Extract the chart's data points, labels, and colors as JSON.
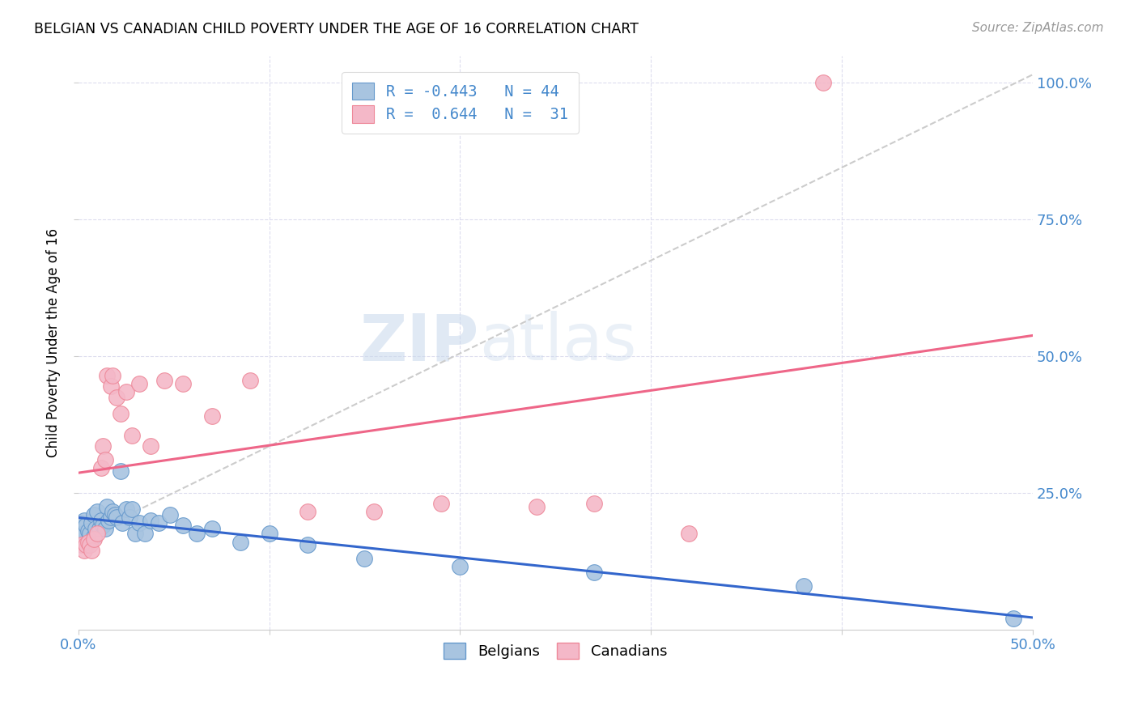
{
  "title": "BELGIAN VS CANADIAN CHILD POVERTY UNDER THE AGE OF 16 CORRELATION CHART",
  "source": "Source: ZipAtlas.com",
  "ylabel": "Child Poverty Under the Age of 16",
  "xlim": [
    0.0,
    0.5
  ],
  "ylim": [
    0.0,
    1.05
  ],
  "xticks": [
    0.0,
    0.1,
    0.2,
    0.3,
    0.4,
    0.5
  ],
  "yticks": [
    0.25,
    0.5,
    0.75,
    1.0
  ],
  "xticklabels_show": [
    "0.0%",
    "50.0%"
  ],
  "yticklabels_show": [
    "25.0%",
    "50.0%",
    "75.0%",
    "100.0%"
  ],
  "belgian_color": "#a8c4e0",
  "canadian_color": "#f4b8c8",
  "belgian_edge": "#6699cc",
  "canadian_edge": "#ee8899",
  "trend_belgian_color": "#3366cc",
  "trend_canadian_color": "#ee6688",
  "tick_color": "#4488cc",
  "watermark": "ZIPatlas",
  "belgians_x": [
    0.001,
    0.002,
    0.003,
    0.003,
    0.004,
    0.005,
    0.006,
    0.007,
    0.008,
    0.008,
    0.009,
    0.01,
    0.011,
    0.012,
    0.013,
    0.014,
    0.015,
    0.016,
    0.017,
    0.018,
    0.019,
    0.02,
    0.022,
    0.023,
    0.025,
    0.027,
    0.028,
    0.03,
    0.032,
    0.035,
    0.038,
    0.042,
    0.048,
    0.055,
    0.062,
    0.07,
    0.085,
    0.1,
    0.12,
    0.15,
    0.2,
    0.27,
    0.38,
    0.49
  ],
  "belgians_y": [
    0.195,
    0.185,
    0.2,
    0.175,
    0.19,
    0.18,
    0.175,
    0.195,
    0.21,
    0.17,
    0.185,
    0.215,
    0.185,
    0.2,
    0.19,
    0.185,
    0.225,
    0.2,
    0.205,
    0.215,
    0.21,
    0.205,
    0.29,
    0.195,
    0.22,
    0.205,
    0.22,
    0.175,
    0.195,
    0.175,
    0.2,
    0.195,
    0.21,
    0.19,
    0.175,
    0.185,
    0.16,
    0.175,
    0.155,
    0.13,
    0.115,
    0.105,
    0.08,
    0.02
  ],
  "canadians_x": [
    0.002,
    0.003,
    0.004,
    0.005,
    0.006,
    0.007,
    0.008,
    0.01,
    0.012,
    0.013,
    0.014,
    0.015,
    0.017,
    0.018,
    0.02,
    0.022,
    0.025,
    0.028,
    0.032,
    0.038,
    0.045,
    0.055,
    0.07,
    0.09,
    0.12,
    0.155,
    0.19,
    0.24,
    0.27,
    0.32,
    0.39
  ],
  "canadians_y": [
    0.155,
    0.145,
    0.155,
    0.16,
    0.155,
    0.145,
    0.165,
    0.175,
    0.295,
    0.335,
    0.31,
    0.465,
    0.445,
    0.465,
    0.425,
    0.395,
    0.435,
    0.355,
    0.45,
    0.335,
    0.455,
    0.45,
    0.39,
    0.455,
    0.215,
    0.215,
    0.23,
    0.225,
    0.23,
    0.175,
    1.0
  ]
}
